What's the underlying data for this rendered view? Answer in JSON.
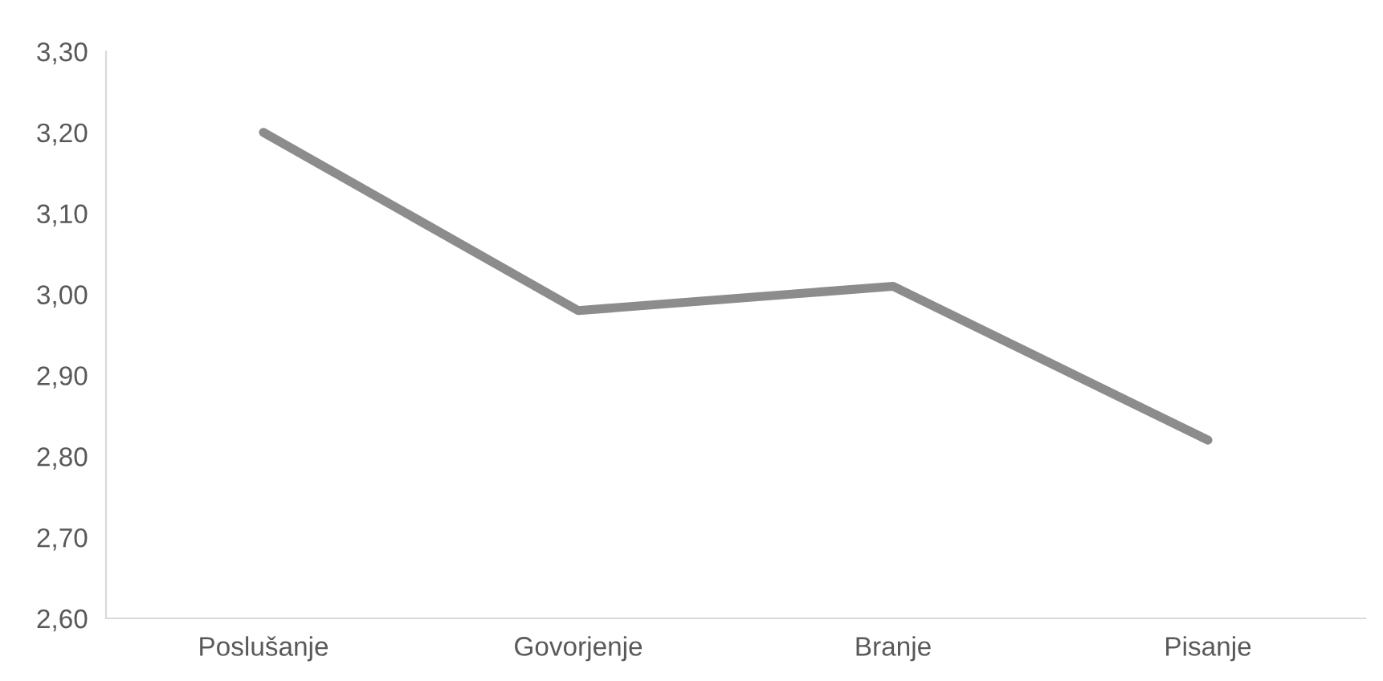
{
  "chart_data": {
    "type": "line",
    "categories": [
      "Poslušanje",
      "Govorjenje",
      "Branje",
      "Pisanje"
    ],
    "series": [
      {
        "color": "#8c8c8c",
        "values": [
          3.2,
          2.98,
          3.01,
          2.82
        ]
      }
    ],
    "ylim": [
      2.6,
      3.3
    ],
    "yticks": [
      {
        "value": 2.6,
        "label": "2,60"
      },
      {
        "value": 2.7,
        "label": "2,70"
      },
      {
        "value": 2.8,
        "label": "2,80"
      },
      {
        "value": 2.9,
        "label": "2,90"
      },
      {
        "value": 3.0,
        "label": "3,00"
      },
      {
        "value": 3.1,
        "label": "3,10"
      },
      {
        "value": 3.2,
        "label": "3,20"
      },
      {
        "value": 3.3,
        "label": "3,30"
      }
    ],
    "grid": false,
    "legend": false,
    "marker": "none",
    "line_style": "solid"
  }
}
